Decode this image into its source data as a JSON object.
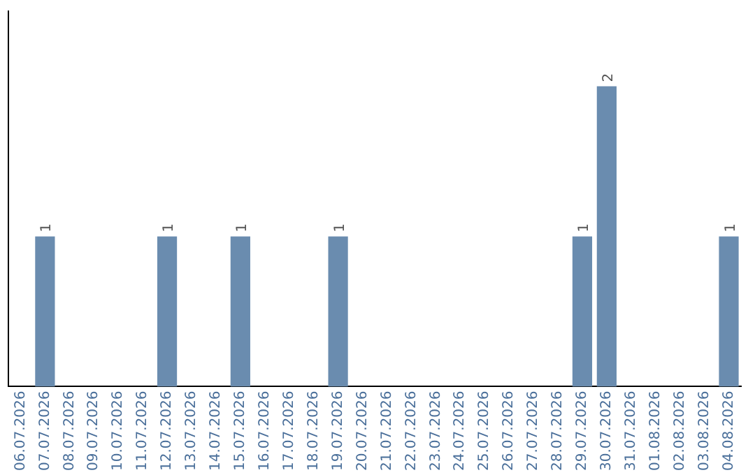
{
  "chart_data": {
    "type": "bar",
    "categories": [
      "06.07.2026",
      "07.07.2026",
      "08.07.2026",
      "09.07.2026",
      "10.07.2026",
      "11.07.2026",
      "12.07.2026",
      "13.07.2026",
      "14.07.2026",
      "15.07.2026",
      "16.07.2026",
      "17.07.2026",
      "18.07.2026",
      "19.07.2026",
      "20.07.2026",
      "21.07.2026",
      "22.07.2026",
      "23.07.2026",
      "24.07.2026",
      "25.07.2026",
      "26.07.2026",
      "27.07.2026",
      "28.07.2026",
      "29.07.2026",
      "30.07.2026",
      "31.07.2026",
      "01.08.2026",
      "02.08.2026",
      "03.08.2026",
      "04.08.2026"
    ],
    "values": [
      0,
      1,
      0,
      0,
      0,
      0,
      1,
      0,
      0,
      1,
      0,
      0,
      0,
      1,
      0,
      0,
      0,
      0,
      0,
      0,
      0,
      0,
      0,
      1,
      2,
      0,
      0,
      0,
      0,
      1
    ],
    "value_labels": [
      null,
      "1",
      null,
      null,
      null,
      null,
      "1",
      null,
      null,
      "1",
      null,
      null,
      null,
      "1",
      null,
      null,
      null,
      null,
      null,
      null,
      null,
      null,
      null,
      "1",
      "2",
      null,
      null,
      null,
      null,
      "1"
    ],
    "color": "#6a8caf",
    "grid": false,
    "legend": false,
    "tick_labels": "x"
  }
}
